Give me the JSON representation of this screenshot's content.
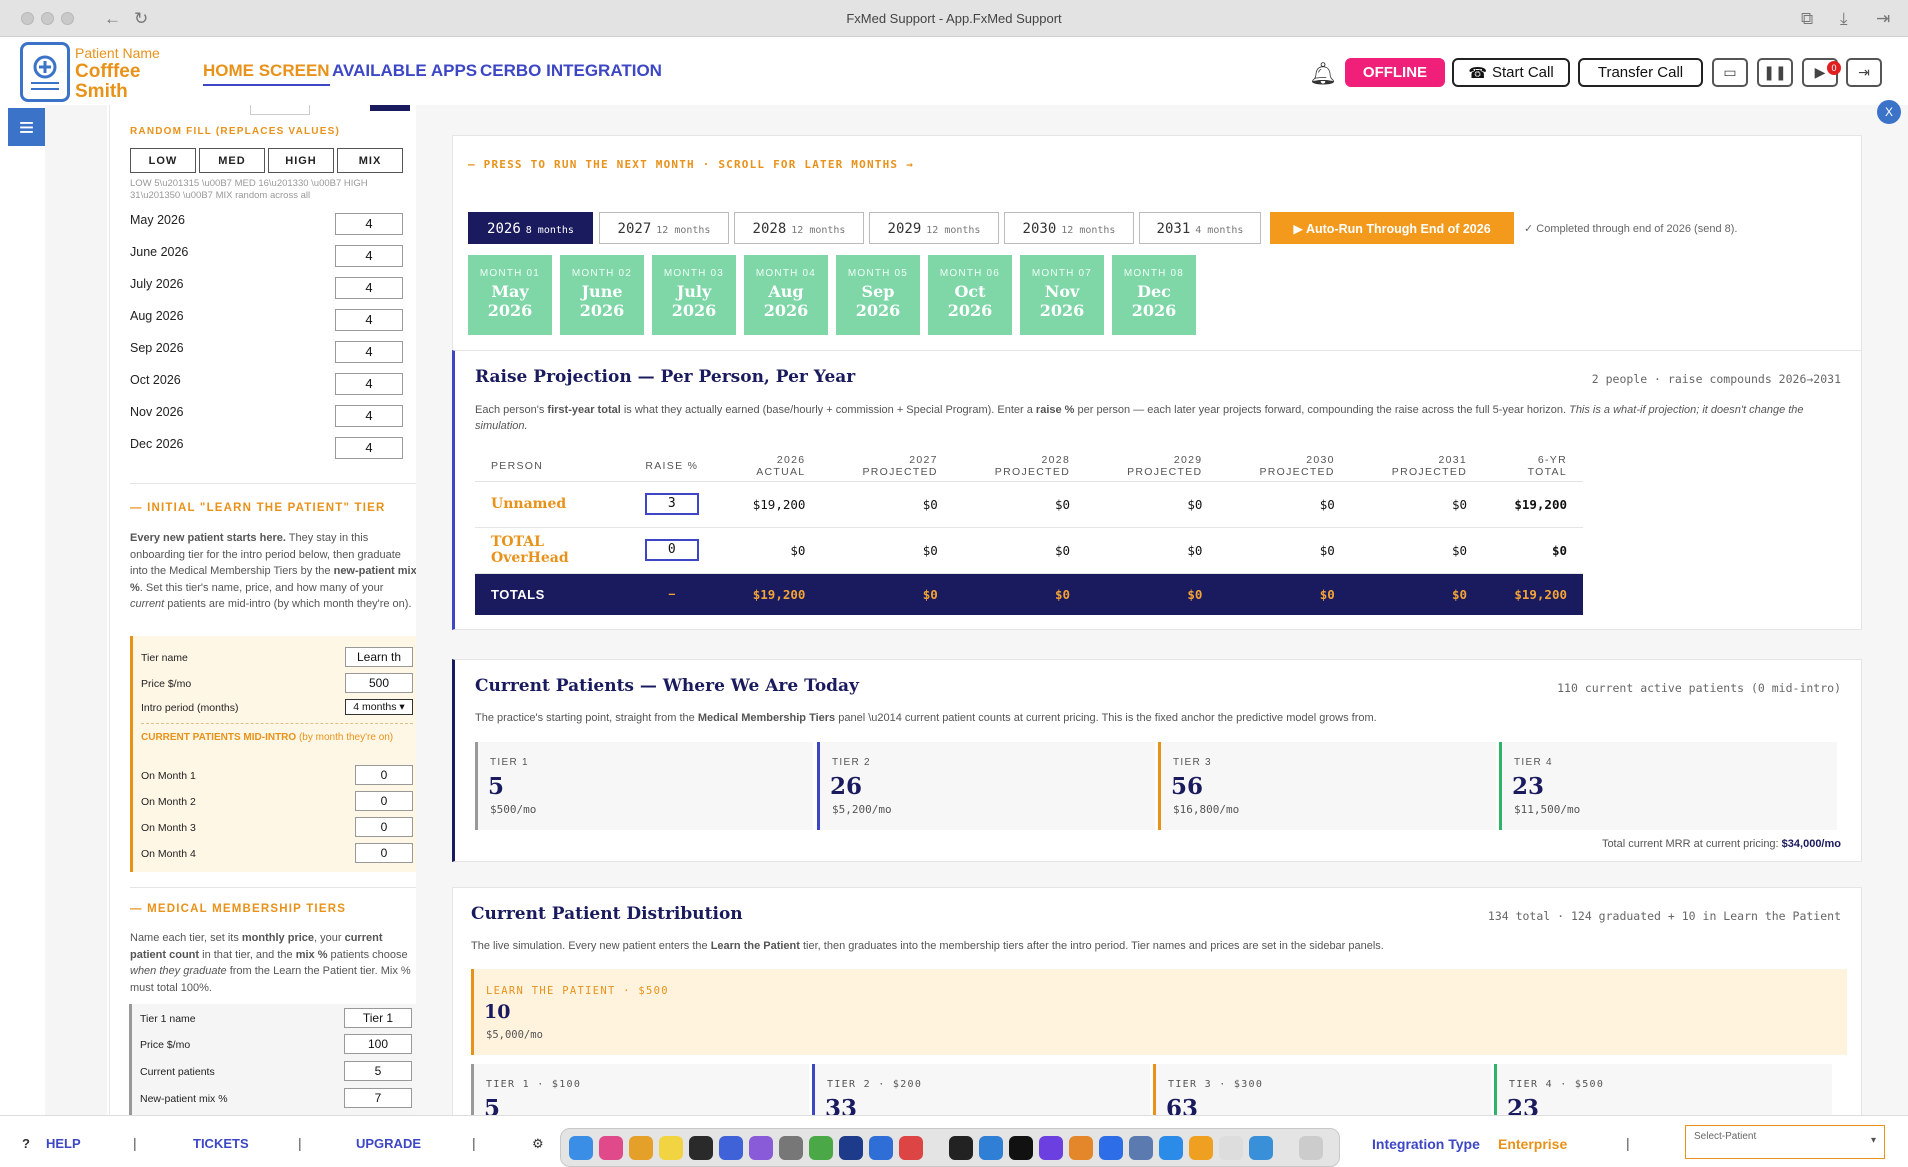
{
  "window": {
    "title": "FxMed Support - App.FxMed Support"
  },
  "header": {
    "patient_label": "Patient Name",
    "patient_name": "Cofffee Smith",
    "nav": [
      "HOME SCREEN",
      "AVAILABLE APPS",
      "CERBO INTEGRATION"
    ],
    "offline": "OFFLINE",
    "start_call": "Start Call",
    "transfer_call": "Transfer Call",
    "badge_count": "0"
  },
  "close_label": "X",
  "sidebar": {
    "random_fill_heading": "RANDOM FILL (REPLACES VALUES)",
    "fill_buttons": [
      "LOW",
      "MED",
      "HIGH",
      "MIX"
    ],
    "fill_hint": "LOW 5\\u201315 \\u00B7 MED 16\\u201330 \\u00B7 HIGH 31\\u201350 \\u00B7 MIX random across all",
    "months": [
      {
        "label": "May 2026",
        "value": "4"
      },
      {
        "label": "June 2026",
        "value": "4"
      },
      {
        "label": "July 2026",
        "value": "4"
      },
      {
        "label": "Aug 2026",
        "value": "4"
      },
      {
        "label": "Sep 2026",
        "value": "4"
      },
      {
        "label": "Oct 2026",
        "value": "4"
      },
      {
        "label": "Nov 2026",
        "value": "4"
      },
      {
        "label": "Dec 2026",
        "value": "4"
      }
    ],
    "intro_heading": "— INITIAL \"LEARN THE PATIENT\" TIER",
    "intro_text_bold": "Every new patient starts here.",
    "intro_text_1": " They stay in this onboarding tier for the intro period below, then graduate into the Medical Membership Tiers by the ",
    "intro_text_bold2": "new-patient mix %",
    "intro_text_2": ". Set this tier's name, price, and how many of your ",
    "intro_text_em": "current",
    "intro_text_3": " patients are mid-intro (by which month they're on).",
    "tier_name_label": "Tier name",
    "tier_name_value": "Learn th",
    "price_label": "Price $/mo",
    "price_value": "500",
    "intro_period_label": "Intro period (months)",
    "intro_period_value": "4 months",
    "mid_intro_heading": "CURRENT PATIENTS MID-INTRO",
    "mid_intro_sub": " (by month they're on)",
    "on_months": [
      {
        "label": "On Month 1",
        "value": "0"
      },
      {
        "label": "On Month 2",
        "value": "0"
      },
      {
        "label": "On Month 3",
        "value": "0"
      },
      {
        "label": "On Month 4",
        "value": "0"
      }
    ],
    "membership_heading": "— MEDICAL MEMBERSHIP TIERS",
    "membership_text_1": "Name each tier, set its ",
    "membership_text_b1": "monthly price",
    "membership_text_2": ", your ",
    "membership_text_b2": "current patient count",
    "membership_text_3": " in that tier, and the ",
    "membership_text_b3": "mix %",
    "membership_text_4": " patients choose ",
    "membership_text_em": "when they graduate",
    "membership_text_5": " from the Learn the Patient tier. Mix % must total 100%.",
    "tier1_name_label": "Tier 1 name",
    "tier1_name_value": "Tier 1",
    "tier1_price_label": "Price $/mo",
    "tier1_price_value": "100",
    "tier1_current_label": "Current patients",
    "tier1_current_value": "5",
    "tier1_mix_label": "New-patient mix %",
    "tier1_mix_value": "7"
  },
  "runner": {
    "heading": "— PRESS TO RUN THE NEXT MONTH · SCROLL FOR LATER MONTHS →",
    "years": [
      {
        "year": "2026",
        "months": "8 months"
      },
      {
        "year": "2027",
        "months": "12 months"
      },
      {
        "year": "2028",
        "months": "12 months"
      },
      {
        "year": "2029",
        "months": "12 months"
      },
      {
        "year": "2030",
        "months": "12 months"
      },
      {
        "year": "2031",
        "months": "4 months"
      }
    ],
    "auto_run": "▶ Auto-Run Through End of 2026",
    "status": "✓ Completed through end of 2026 (send 8).",
    "tiles": [
      {
        "label": "MONTH 01",
        "month": "May",
        "year": "2026"
      },
      {
        "label": "MONTH 02",
        "month": "June",
        "year": "2026"
      },
      {
        "label": "MONTH 03",
        "month": "July",
        "year": "2026"
      },
      {
        "label": "MONTH 04",
        "month": "Aug",
        "year": "2026"
      },
      {
        "label": "MONTH 05",
        "month": "Sep",
        "year": "2026"
      },
      {
        "label": "MONTH 06",
        "month": "Oct",
        "year": "2026"
      },
      {
        "label": "MONTH 07",
        "month": "Nov",
        "year": "2026"
      },
      {
        "label": "MONTH 08",
        "month": "Dec",
        "year": "2026"
      }
    ]
  },
  "raise": {
    "title": "Raise Projection — Per Person, Per Year",
    "meta": "2 people · raise compounds 2026→2031",
    "desc_1": "Each person's ",
    "desc_b1": "first-year total",
    "desc_2": " is what they actually earned (base/hourly + commission + Special Program). Enter a ",
    "desc_b2": "raise %",
    "desc_3": " per person — each later year projects forward, compounding the raise across the full 5-year horizon. ",
    "desc_em": "This is a what-if projection; it doesn't change the simulation.",
    "columns": [
      "PERSON",
      "RAISE %",
      "2026 ACTUAL",
      "2027 PROJECTED",
      "2028 PROJECTED",
      "2029 PROJECTED",
      "2030 PROJECTED",
      "2031 PROJECTED",
      "6-YR TOTAL"
    ],
    "rows": [
      {
        "name": "Unnamed",
        "raise": "3",
        "cells": [
          "$19,200",
          "$0",
          "$0",
          "$0",
          "$0",
          "$0",
          "$19,200"
        ]
      },
      {
        "name": "TOTAL OverHead",
        "raise": "0",
        "cells": [
          "$0",
          "$0",
          "$0",
          "$0",
          "$0",
          "$0",
          "$0"
        ]
      }
    ],
    "totals": {
      "name": "TOTALS",
      "raise": "–",
      "cells": [
        "$19,200",
        "$0",
        "$0",
        "$0",
        "$0",
        "$0",
        "$19,200"
      ]
    }
  },
  "current": {
    "title": "Current Patients — Where We Are Today",
    "meta": "110 current active patients (0 mid-intro)",
    "desc_1": "The practice's starting point, straight from the ",
    "desc_b": "Medical Membership Tiers",
    "desc_2": " panel \\u2014 current patient counts at current pricing. This is the fixed anchor the predictive model grows from.",
    "tiers": [
      {
        "label": "TIER 1",
        "value": "5",
        "price": "$500/mo",
        "color": "#999999"
      },
      {
        "label": "TIER 2",
        "value": "26",
        "price": "$5,200/mo",
        "color": "#3d47c5"
      },
      {
        "label": "TIER 3",
        "value": "56",
        "price": "$16,800/mo",
        "color": "#e8921a"
      },
      {
        "label": "TIER 4",
        "value": "23",
        "price": "$11,500/mo",
        "color": "#2fb36b"
      }
    ],
    "mrr_label": "Total current MRR at current pricing: ",
    "mrr_value": "$34,000/mo"
  },
  "distribution": {
    "title": "Current Patient Distribution",
    "meta": "134 total · 124 graduated + 10 in Learn the Patient",
    "desc_1": "The live simulation. Every new patient enters the ",
    "desc_b": "Learn the Patient",
    "desc_2": " tier, then graduates into the membership tiers after the intro period. Tier names and prices are set in the sidebar panels.",
    "learn": {
      "label": "LEARN THE PATIENT · $500",
      "value": "10",
      "price": "$5,000/mo"
    },
    "tiers": [
      {
        "label": "TIER 1 · $100",
        "value": "5",
        "color": "#999999"
      },
      {
        "label": "TIER 2 · $200",
        "value": "33",
        "color": "#3d47c5"
      },
      {
        "label": "TIER 3 · $300",
        "value": "63",
        "color": "#e8921a"
      },
      {
        "label": "TIER 4 · $500",
        "value": "23",
        "color": "#2fb36b"
      }
    ]
  },
  "footer": {
    "help": "HELP",
    "tickets": "TICKETS",
    "upgrade": "UPGRADE",
    "integration_label": "Integration Type",
    "integration_value": "Enterprise",
    "select_patient": "Select-Patient"
  },
  "colors": {
    "accent": "#3d47c5",
    "brand": "#e8921a",
    "navy": "#1a1a5e",
    "offline": "#f0207a",
    "tile": "#7fd7a8"
  }
}
